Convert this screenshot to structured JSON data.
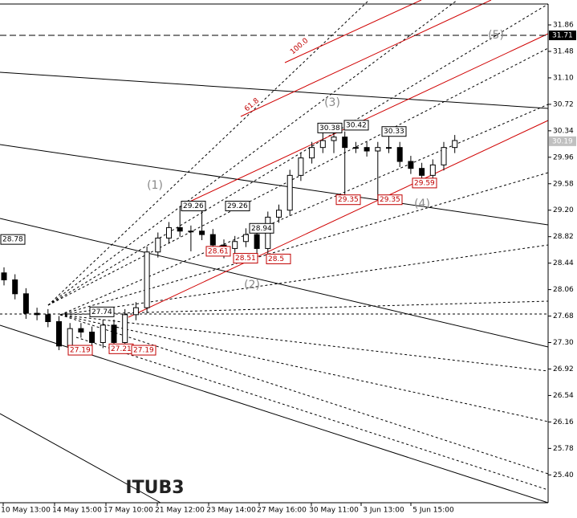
{
  "chart_data": {
    "type": "candlestick",
    "title": "ITUB3",
    "x_labels": [
      "10 May 13:00",
      "14 May 15:00",
      "17 May 10:00",
      "21 May 12:00",
      "23 May 14:00",
      "27 May 16:00",
      "30 May 11:00",
      "3 Jun 13:00",
      "5 Jun 15:00"
    ],
    "open": [
      28.3,
      28.2,
      28.0,
      27.72,
      27.7,
      27.6,
      27.25,
      27.5,
      27.45,
      27.3,
      27.55,
      27.3,
      27.7,
      27.8,
      28.6,
      28.8,
      28.95,
      28.9,
      28.9,
      28.85,
      28.7,
      28.65,
      28.75,
      28.85,
      28.65,
      29.1,
      29.2,
      29.7,
      29.95,
      30.1,
      30.2,
      30.25,
      30.1,
      30.1,
      30.05,
      30.1,
      30.1,
      29.9,
      29.8,
      29.7,
      29.85,
      30.1
    ],
    "high": [
      28.38,
      28.28,
      28.08,
      27.8,
      27.78,
      27.68,
      27.58,
      27.58,
      27.53,
      27.63,
      27.63,
      27.78,
      27.88,
      28.68,
      28.88,
      29.03,
      29.26,
      28.98,
      29.26,
      28.93,
      28.78,
      28.83,
      28.94,
      28.93,
      29.18,
      29.28,
      29.78,
      30.03,
      30.18,
      30.38,
      30.42,
      30.33,
      30.18,
      30.18,
      30.18,
      30.33,
      30.18,
      29.98,
      29.88,
      29.93,
      30.18,
      30.28
    ],
    "low": [
      28.12,
      27.92,
      27.64,
      27.62,
      27.52,
      27.19,
      27.17,
      27.37,
      27.22,
      27.22,
      27.22,
      27.21,
      27.62,
      27.72,
      28.52,
      28.72,
      28.82,
      28.61,
      28.77,
      28.62,
      28.51,
      28.57,
      28.67,
      28.5,
      28.57,
      29.02,
      29.12,
      29.62,
      29.87,
      30.02,
      30.02,
      29.35,
      30.02,
      29.97,
      29.35,
      30.02,
      29.82,
      29.72,
      29.59,
      29.62,
      29.77,
      30.02
    ],
    "close": [
      28.2,
      28.0,
      27.72,
      27.7,
      27.6,
      27.25,
      27.5,
      27.45,
      27.3,
      27.55,
      27.3,
      27.7,
      27.8,
      28.6,
      28.8,
      28.95,
      28.9,
      28.9,
      28.85,
      28.7,
      28.65,
      28.75,
      28.85,
      28.65,
      29.1,
      29.2,
      29.7,
      29.95,
      30.1,
      30.2,
      30.25,
      30.1,
      30.1,
      30.05,
      30.1,
      30.1,
      29.9,
      29.8,
      29.7,
      29.85,
      30.1,
      30.2
    ],
    "ylim": [
      25.0,
      32.16
    ],
    "yticks": [
      31.86,
      31.48,
      {
        "value": 31.1,
        "label": "31.10"
      },
      30.72,
      30.34,
      29.96,
      29.58,
      {
        "value": 29.2,
        "label": "29.20"
      },
      28.82,
      28.44,
      28.06,
      27.68,
      {
        "value": 27.3,
        "label": "27.30"
      },
      26.92,
      26.54,
      26.16,
      25.78,
      {
        "value": 25.4,
        "label": "25.40"
      }
    ],
    "price_markers": [
      {
        "value": 31.71,
        "color": "#000000"
      },
      {
        "value": 30.19,
        "color": "#c0c0c0"
      }
    ],
    "high_labels": [
      28.78,
      27.74,
      29.26,
      29.26,
      28.94,
      30.38,
      30.42,
      30.33
    ],
    "low_labels": [
      27.19,
      27.21,
      27.19,
      28.61,
      28.51,
      28.5,
      29.35,
      29.35,
      29.59
    ],
    "wave_labels": [
      "(1)",
      "(2)",
      "(3)",
      "(4)",
      "(5)"
    ],
    "fib_labels": [
      "61.8",
      "100.0"
    ]
  }
}
